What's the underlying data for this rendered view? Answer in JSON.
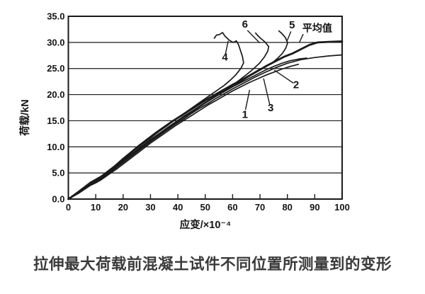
{
  "caption": "拉伸最大荷载前混凝土试件不同位置所测量到的变形",
  "chart_data": {
    "type": "line",
    "title": "",
    "xlabel": "应变/×10⁻⁴",
    "ylabel": "荷载/kN",
    "xlim": [
      0,
      100
    ],
    "ylim": [
      0,
      35
    ],
    "xticks": [
      0,
      10,
      20,
      30,
      40,
      50,
      60,
      70,
      80,
      90,
      100
    ],
    "ytick_labels": [
      "0.0",
      "5.0",
      "10.0",
      "15.0",
      "20.0",
      "25.0",
      "30.0",
      "35.0"
    ],
    "ytick_step": 5,
    "grid_loads": [
      5,
      10,
      15,
      20,
      25,
      30
    ],
    "grid": true,
    "legend_position": "in-plot-annotations",
    "ink": "#1a1a1a",
    "series": [
      {
        "name": "curve-average",
        "label": "平均值",
        "width": 2.8,
        "points": [
          [
            0,
            0
          ],
          [
            2,
            0.7
          ],
          [
            4,
            1.4
          ],
          [
            6,
            2.2
          ],
          [
            8,
            3.0
          ],
          [
            10,
            3.5
          ],
          [
            12,
            4.1
          ],
          [
            14,
            5.0
          ],
          [
            17,
            6.3
          ],
          [
            20,
            7.7
          ],
          [
            23,
            9.0
          ],
          [
            26,
            10.3
          ],
          [
            29,
            11.5
          ],
          [
            32,
            12.7
          ],
          [
            35,
            13.8
          ],
          [
            38,
            14.9
          ],
          [
            41,
            15.9
          ],
          [
            44,
            16.9
          ],
          [
            47,
            17.9
          ],
          [
            50,
            18.9
          ],
          [
            53,
            19.8
          ],
          [
            56,
            20.7
          ],
          [
            60,
            21.9
          ],
          [
            64,
            23.0
          ],
          [
            68,
            24.2
          ],
          [
            72,
            25.4
          ],
          [
            76,
            26.5
          ],
          [
            79,
            27.3
          ],
          [
            82,
            27.9
          ],
          [
            85,
            28.7
          ],
          [
            88,
            29.5
          ],
          [
            91,
            30.0
          ],
          [
            95,
            30.1
          ],
          [
            100,
            30.2
          ]
        ]
      },
      {
        "name": "curve-1",
        "label": "1",
        "width": 1.7,
        "points": [
          [
            0,
            0
          ],
          [
            2,
            0.6
          ],
          [
            4,
            1.2
          ],
          [
            6,
            1.9
          ],
          [
            8,
            2.6
          ],
          [
            10,
            3.1
          ],
          [
            12,
            3.7
          ],
          [
            15,
            4.8
          ],
          [
            18,
            5.9
          ],
          [
            21,
            7.1
          ],
          [
            24,
            8.3
          ],
          [
            27,
            9.5
          ],
          [
            30,
            10.7
          ],
          [
            33,
            11.8
          ],
          [
            36,
            12.9
          ],
          [
            39,
            14.0
          ],
          [
            42,
            15.0
          ],
          [
            45,
            16.0
          ],
          [
            48,
            17.0
          ],
          [
            51,
            18.0
          ],
          [
            54,
            18.9
          ],
          [
            57,
            19.8
          ],
          [
            60,
            20.7
          ],
          [
            63,
            21.5
          ],
          [
            66,
            22.3
          ],
          [
            69,
            23.0
          ],
          [
            72,
            23.7
          ],
          [
            75,
            24.3
          ],
          [
            78,
            24.9
          ],
          [
            81,
            25.4
          ],
          [
            84,
            25.8
          ]
        ]
      },
      {
        "name": "curve-2",
        "label": "2",
        "width": 1.7,
        "points": [
          [
            0,
            0
          ],
          [
            2,
            0.7
          ],
          [
            4,
            1.3
          ],
          [
            6,
            2.0
          ],
          [
            8,
            2.8
          ],
          [
            10,
            3.3
          ],
          [
            12,
            3.9
          ],
          [
            15,
            5.0
          ],
          [
            18,
            6.2
          ],
          [
            21,
            7.4
          ],
          [
            24,
            8.6
          ],
          [
            27,
            9.8
          ],
          [
            30,
            11.0
          ],
          [
            33,
            12.1
          ],
          [
            36,
            13.2
          ],
          [
            39,
            14.3
          ],
          [
            42,
            15.3
          ],
          [
            45,
            16.4
          ],
          [
            48,
            17.4
          ],
          [
            51,
            18.3
          ],
          [
            54,
            19.3
          ],
          [
            57,
            20.2
          ],
          [
            60,
            21.1
          ],
          [
            64,
            22.2
          ],
          [
            68,
            23.3
          ],
          [
            72,
            24.3
          ],
          [
            76,
            25.2
          ],
          [
            80,
            26.0
          ],
          [
            85,
            26.7
          ],
          [
            90,
            27.1
          ],
          [
            95,
            27.4
          ],
          [
            100,
            27.6
          ]
        ]
      },
      {
        "name": "curve-3",
        "label": "3",
        "width": 1.7,
        "points": [
          [
            0,
            0
          ],
          [
            2,
            0.8
          ],
          [
            4,
            1.5
          ],
          [
            6,
            2.3
          ],
          [
            8,
            3.1
          ],
          [
            10,
            3.7
          ],
          [
            12,
            4.3
          ],
          [
            15,
            5.4
          ],
          [
            18,
            6.6
          ],
          [
            21,
            7.8
          ],
          [
            24,
            9.0
          ],
          [
            27,
            10.2
          ],
          [
            30,
            11.4
          ],
          [
            33,
            12.5
          ],
          [
            36,
            13.6
          ],
          [
            39,
            14.7
          ],
          [
            42,
            15.8
          ],
          [
            45,
            16.8
          ],
          [
            48,
            17.8
          ],
          [
            51,
            18.8
          ],
          [
            54,
            19.7
          ],
          [
            57,
            20.6
          ],
          [
            60,
            21.5
          ],
          [
            63,
            22.3
          ],
          [
            66,
            23.1
          ],
          [
            69,
            23.9
          ],
          [
            72,
            24.7
          ],
          [
            75,
            25.4
          ],
          [
            78,
            26.0
          ],
          [
            81,
            26.5
          ],
          [
            84,
            26.8
          ],
          [
            87,
            27.0
          ]
        ]
      },
      {
        "name": "curve-4",
        "label": "4",
        "width": 1.7,
        "points": [
          [
            0,
            0
          ],
          [
            2,
            0.8
          ],
          [
            4,
            1.6
          ],
          [
            6,
            2.4
          ],
          [
            8,
            3.2
          ],
          [
            10,
            3.8
          ],
          [
            12,
            4.4
          ],
          [
            15,
            5.6
          ],
          [
            18,
            6.8
          ],
          [
            21,
            8.0
          ],
          [
            24,
            9.3
          ],
          [
            27,
            10.5
          ],
          [
            30,
            11.7
          ],
          [
            33,
            12.9
          ],
          [
            36,
            14.0
          ],
          [
            39,
            15.2
          ],
          [
            42,
            16.3
          ],
          [
            45,
            17.4
          ],
          [
            48,
            18.5
          ],
          [
            51,
            19.6
          ],
          [
            54,
            20.7
          ],
          [
            57,
            21.8
          ],
          [
            59,
            22.7
          ],
          [
            61,
            23.7
          ],
          [
            63,
            25.0
          ],
          [
            64,
            26.1
          ],
          [
            63.6,
            27.3
          ],
          [
            62.9,
            28.4
          ],
          [
            62.2,
            29.5
          ],
          [
            61.4,
            30.3
          ],
          [
            60.2,
            30.0
          ],
          [
            58.8,
            30.4
          ],
          [
            57.2,
            31.2
          ],
          [
            56.3,
            31.9
          ],
          [
            55.2,
            31.5
          ],
          [
            54.1,
            31.4
          ],
          [
            53.3,
            30.8
          ]
        ]
      },
      {
        "name": "curve-5",
        "label": "5",
        "width": 1.7,
        "points": [
          [
            0,
            0
          ],
          [
            2,
            0.7
          ],
          [
            4,
            1.4
          ],
          [
            6,
            2.1
          ],
          [
            8,
            2.9
          ],
          [
            10,
            3.4
          ],
          [
            12,
            4.0
          ],
          [
            15,
            5.2
          ],
          [
            18,
            6.4
          ],
          [
            21,
            7.6
          ],
          [
            24,
            8.8
          ],
          [
            27,
            10.0
          ],
          [
            30,
            11.2
          ],
          [
            33,
            12.3
          ],
          [
            36,
            13.4
          ],
          [
            39,
            14.5
          ],
          [
            42,
            15.6
          ],
          [
            45,
            16.6
          ],
          [
            48,
            17.7
          ],
          [
            51,
            18.7
          ],
          [
            54,
            19.7
          ],
          [
            57,
            20.6
          ],
          [
            60,
            21.5
          ],
          [
            63,
            22.5
          ],
          [
            66,
            23.5
          ],
          [
            69,
            24.4
          ],
          [
            72,
            25.3
          ],
          [
            74.5,
            26.1
          ],
          [
            76.5,
            27.0
          ],
          [
            78.2,
            27.9
          ],
          [
            79.4,
            28.9
          ],
          [
            80.1,
            29.9
          ],
          [
            79.3,
            30.9
          ],
          [
            78.0,
            31.7
          ],
          [
            76.9,
            32.2
          ]
        ]
      },
      {
        "name": "curve-6",
        "label": "6",
        "width": 1.7,
        "points": [
          [
            0,
            0
          ],
          [
            2,
            0.8
          ],
          [
            4,
            1.5
          ],
          [
            6,
            2.2
          ],
          [
            8,
            3.0
          ],
          [
            10,
            3.6
          ],
          [
            12,
            4.2
          ],
          [
            15,
            5.3
          ],
          [
            18,
            6.5
          ],
          [
            21,
            7.7
          ],
          [
            24,
            8.9
          ],
          [
            27,
            10.1
          ],
          [
            30,
            11.3
          ],
          [
            33,
            12.4
          ],
          [
            36,
            13.5
          ],
          [
            39,
            14.6
          ],
          [
            42,
            15.7
          ],
          [
            45,
            16.7
          ],
          [
            48,
            17.8
          ],
          [
            51,
            18.8
          ],
          [
            54,
            19.8
          ],
          [
            57,
            20.8
          ],
          [
            60,
            21.8
          ],
          [
            62.5,
            22.8
          ],
          [
            65,
            23.8
          ],
          [
            67.5,
            24.9
          ],
          [
            69.8,
            26.0
          ],
          [
            71.6,
            27.2
          ],
          [
            72.8,
            28.3
          ],
          [
            73.2,
            29.2
          ],
          [
            71.8,
            30.1
          ],
          [
            70.2,
            30.8
          ],
          [
            69.0,
            31.4
          ],
          [
            68.4,
            31.8
          ]
        ]
      }
    ],
    "labels": [
      {
        "text": "1",
        "x": 64.5,
        "y": 15.5,
        "cjk": false
      },
      {
        "text": "2",
        "x": 83.2,
        "y": 21.2,
        "cjk": false
      },
      {
        "text": "3",
        "x": 73.9,
        "y": 16.8,
        "cjk": false
      },
      {
        "text": "4",
        "x": 57.2,
        "y": 26.5,
        "cjk": false
      },
      {
        "text": "5",
        "x": 81.7,
        "y": 32.7,
        "cjk": false
      },
      {
        "text": "6",
        "x": 64.5,
        "y": 32.8,
        "cjk": false
      },
      {
        "text": "平均值",
        "x": 90.9,
        "y": 32.1,
        "cjk": true
      }
    ],
    "leaders": [
      {
        "for": "1",
        "from": [
          64.7,
          17.1
        ],
        "to": [
          66.2,
          20.9
        ]
      },
      {
        "for": "2",
        "from": [
          82.2,
          22.2
        ],
        "to": [
          75.2,
          24.7
        ]
      },
      {
        "for": "3",
        "from": [
          73.6,
          18.0
        ],
        "to": [
          71.3,
          23.1
        ]
      },
      {
        "for": "4",
        "from": [
          57.3,
          27.6
        ],
        "to": [
          58.4,
          30.3
        ]
      },
      {
        "for": "5",
        "from": [
          81.3,
          32.1
        ],
        "to": [
          79.9,
          30.3
        ]
      },
      {
        "for": "6",
        "from": [
          65.4,
          32.3
        ],
        "to": [
          69.9,
          29.9
        ]
      },
      {
        "for": "average",
        "from": [
          85.8,
          31.6
        ],
        "to": [
          84.3,
          29.9
        ]
      }
    ]
  }
}
